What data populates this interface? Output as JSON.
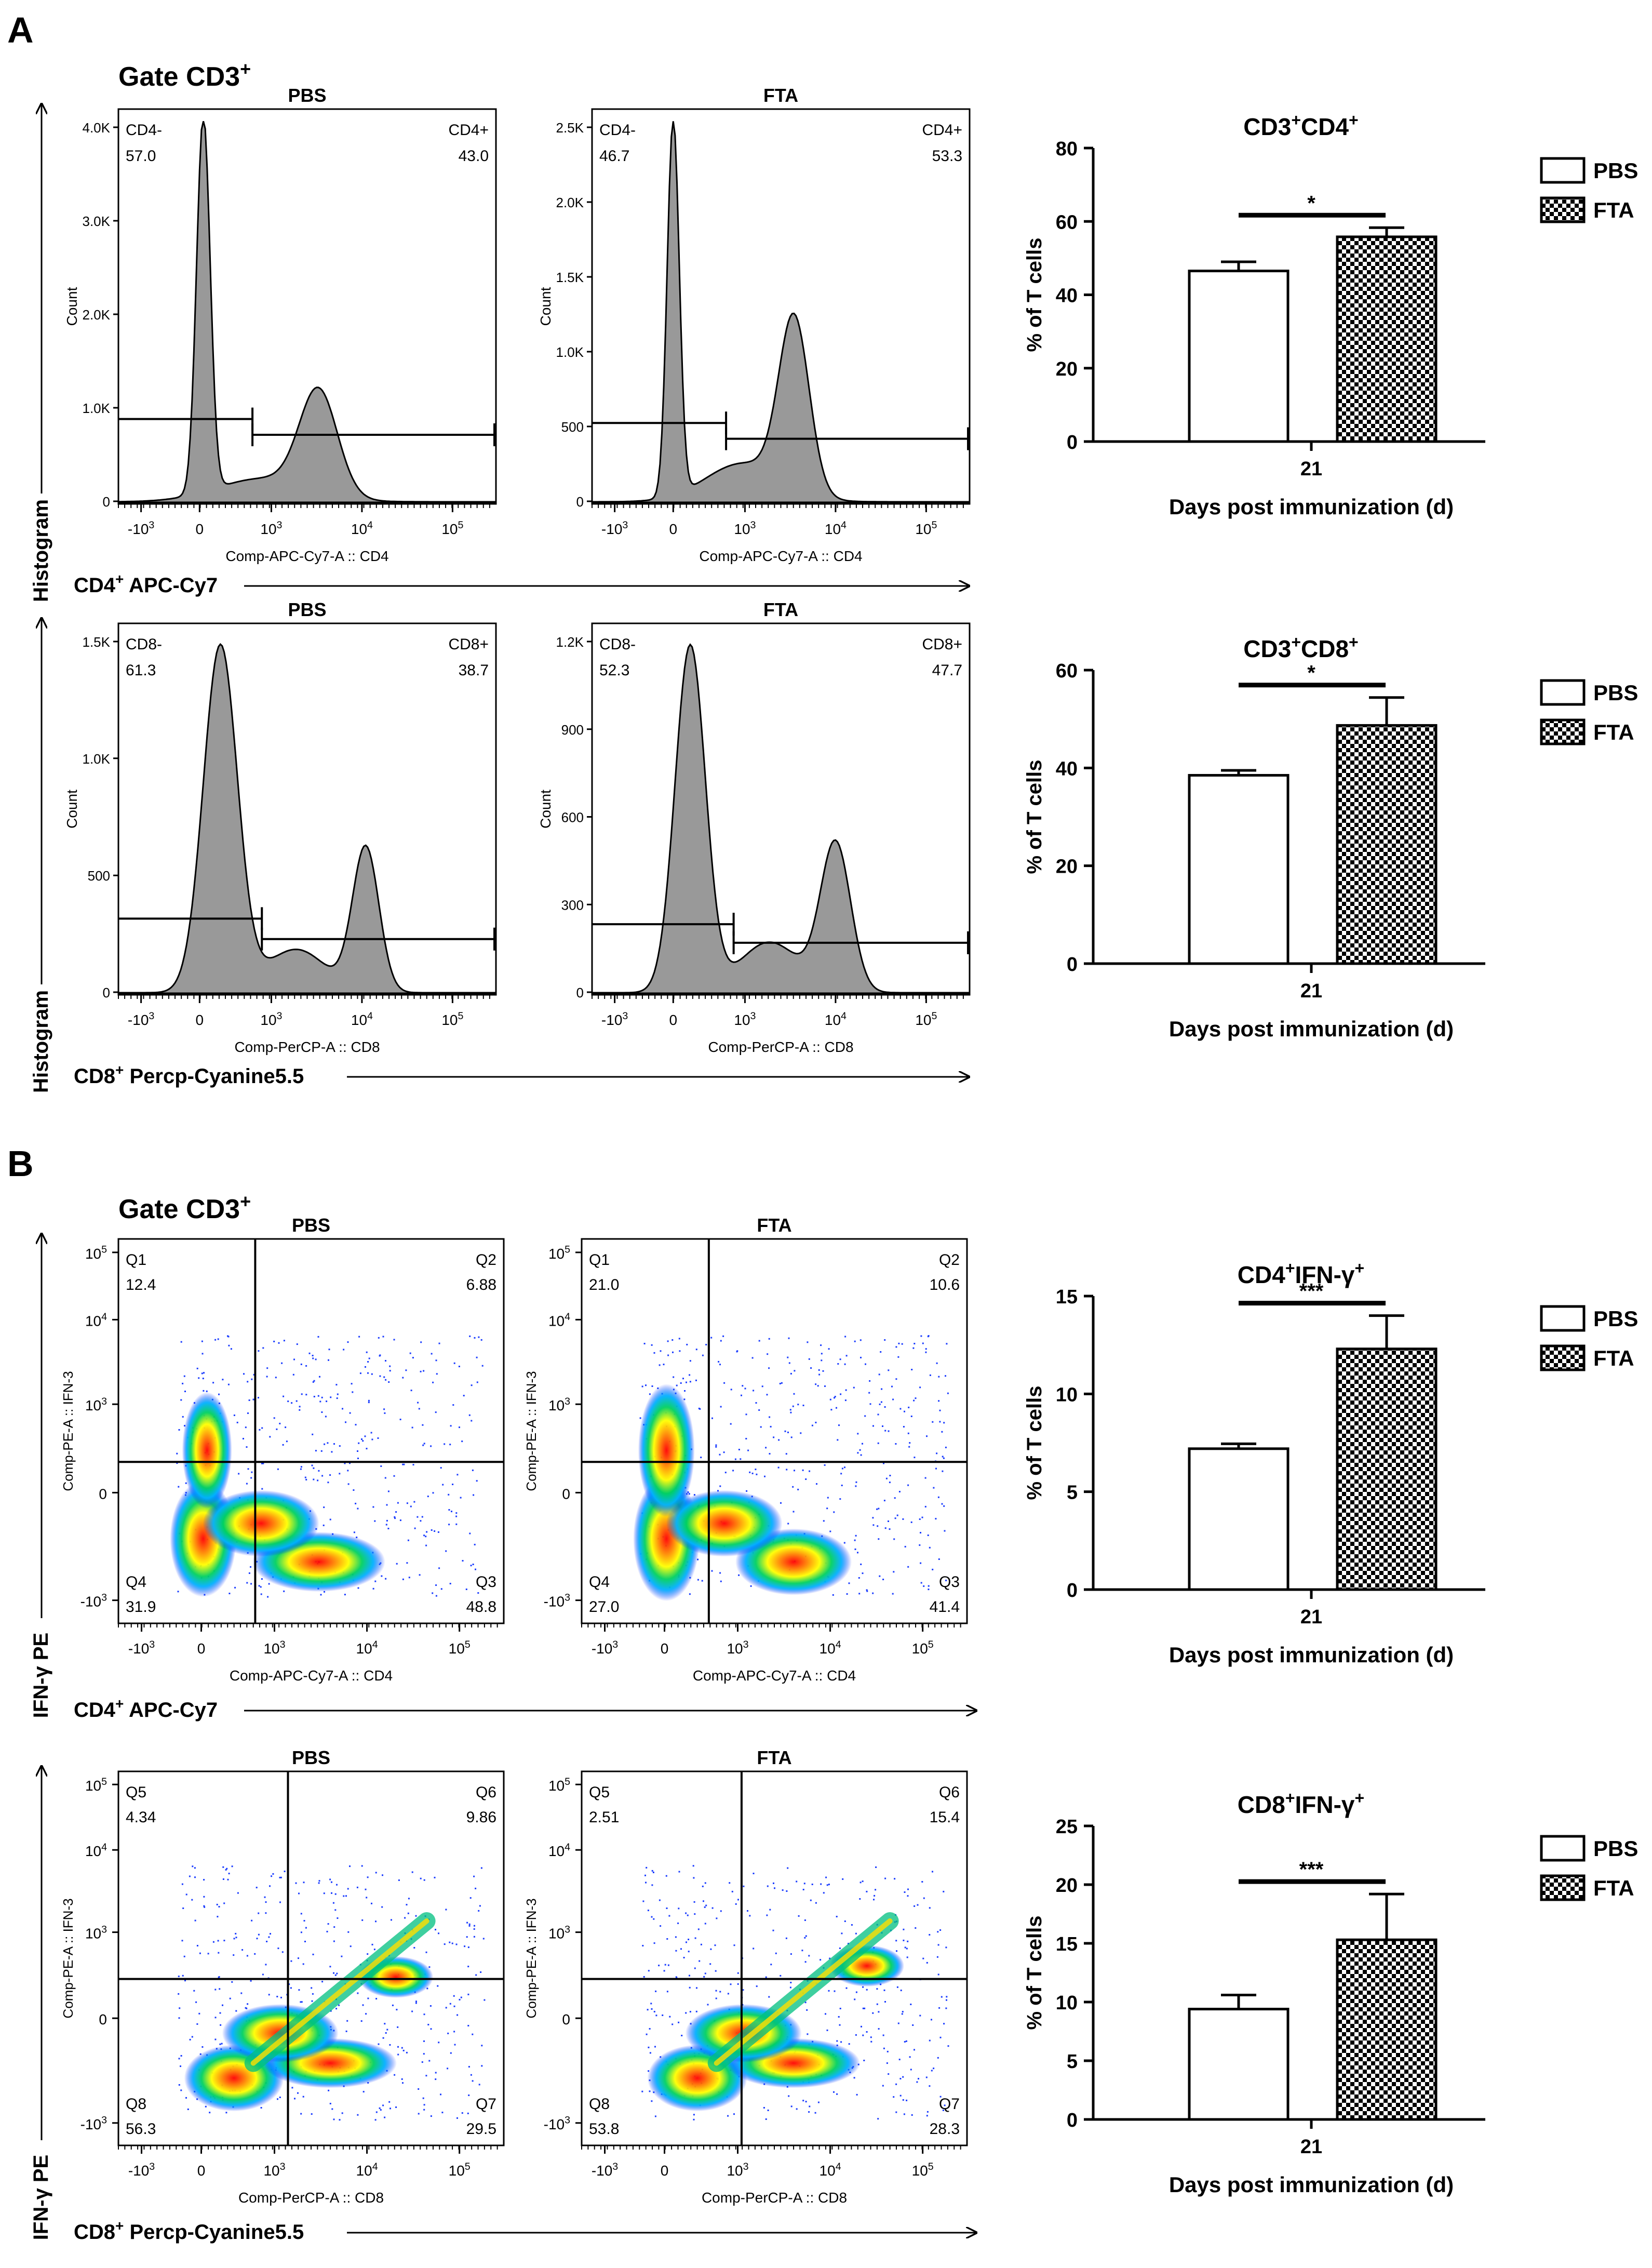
{
  "panel_labels": {
    "A": "A",
    "B": "B"
  },
  "section_A": {
    "gate_label": "Gate CD3",
    "gate_sup": "+",
    "rows": [
      {
        "y_title": "Histogram",
        "x_title_main": "CD4",
        "x_title_sup": "+",
        "x_title_rest": " APC-Cy7",
        "plots": [
          {
            "group": "PBS",
            "xlabel": "Comp-APC-Cy7-A :: CD4",
            "ylabel": "Count",
            "yticks": [
              "0",
              "1.0K",
              "2.0K",
              "3.0K",
              "4.0K"
            ],
            "xticks": [
              "-10",
              "0",
              "10",
              "10",
              "10"
            ],
            "xsup": [
              "3",
              "",
              "3",
              "4",
              "5"
            ],
            "gate_neg_label": "CD4-",
            "gate_neg_value": "57.0",
            "gate_pos_label": "CD4+",
            "gate_pos_value": "43.0"
          },
          {
            "group": "FTA",
            "xlabel": "Comp-APC-Cy7-A :: CD4",
            "ylabel": "Count",
            "yticks": [
              "0",
              "500",
              "1.0K",
              "1.5K",
              "2.0K",
              "2.5K"
            ],
            "xticks": [
              "-10",
              "0",
              "10",
              "10",
              "10"
            ],
            "xsup": [
              "3",
              "",
              "3",
              "4",
              "5"
            ],
            "gate_neg_label": "CD4-",
            "gate_neg_value": "46.7",
            "gate_pos_label": "CD4+",
            "gate_pos_value": "53.3"
          }
        ]
      },
      {
        "y_title": "Histogram",
        "x_title_main": "CD8",
        "x_title_sup": "+",
        "x_title_rest": " Percp-Cyanine5.5",
        "plots": [
          {
            "group": "PBS",
            "xlabel": "Comp-PerCP-A :: CD8",
            "ylabel": "Count",
            "yticks": [
              "0",
              "500",
              "1.0K",
              "1.5K"
            ],
            "xticks": [
              "-10",
              "0",
              "10",
              "10",
              "10"
            ],
            "xsup": [
              "3",
              "",
              "3",
              "4",
              "5"
            ],
            "gate_neg_label": "CD8-",
            "gate_neg_value": "61.3",
            "gate_pos_label": "CD8+",
            "gate_pos_value": "38.7"
          },
          {
            "group": "FTA",
            "xlabel": "Comp-PerCP-A :: CD8",
            "ylabel": "Count",
            "yticks": [
              "0",
              "300",
              "600",
              "900",
              "1.2K"
            ],
            "xticks": [
              "-10",
              "0",
              "10",
              "10",
              "10"
            ],
            "xsup": [
              "3",
              "",
              "3",
              "4",
              "5"
            ],
            "gate_neg_label": "CD8-",
            "gate_neg_value": "52.3",
            "gate_pos_label": "CD8+",
            "gate_pos_value": "47.7"
          }
        ]
      }
    ]
  },
  "section_B": {
    "gate_label": "Gate CD3",
    "gate_sup": "+",
    "rows": [
      {
        "y_title": "IFN-γ PE",
        "x_title_main": "CD4",
        "x_title_sup": "+",
        "x_title_rest": " APC-Cy7",
        "plots": [
          {
            "group": "PBS",
            "xlabel": "Comp-APC-Cy7-A :: CD4",
            "ylabel": "Comp-PE-A :: IFN-3",
            "yticks": [
              "-10",
              "0",
              "10",
              "10",
              "10"
            ],
            "ysup": [
              "3",
              "",
              "3",
              "4",
              "5"
            ],
            "xticks": [
              "-10",
              "0",
              "10",
              "10",
              "10"
            ],
            "xsup": [
              "3",
              "",
              "3",
              "4",
              "5"
            ],
            "quadrants": [
              {
                "name": "Q1",
                "value": "12.4"
              },
              {
                "name": "Q2",
                "value": "6.88"
              },
              {
                "name": "Q3",
                "value": "48.8"
              },
              {
                "name": "Q4",
                "value": "31.9"
              }
            ]
          },
          {
            "group": "FTA",
            "xlabel": "Comp-APC-Cy7-A :: CD4",
            "ylabel": "Comp-PE-A :: IFN-3",
            "yticks": [
              "-10",
              "0",
              "10",
              "10",
              "10"
            ],
            "ysup": [
              "3",
              "",
              "3",
              "4",
              "5"
            ],
            "xticks": [
              "-10",
              "0",
              "10",
              "10",
              "10"
            ],
            "xsup": [
              "3",
              "",
              "3",
              "4",
              "5"
            ],
            "quadrants": [
              {
                "name": "Q1",
                "value": "21.0"
              },
              {
                "name": "Q2",
                "value": "10.6"
              },
              {
                "name": "Q3",
                "value": "41.4"
              },
              {
                "name": "Q4",
                "value": "27.0"
              }
            ]
          }
        ]
      },
      {
        "y_title": "IFN-γ PE",
        "x_title_main": "CD8",
        "x_title_sup": "+",
        "x_title_rest": " Percp-Cyanine5.5",
        "plots": [
          {
            "group": "PBS",
            "xlabel": "Comp-PerCP-A :: CD8",
            "ylabel": "Comp-PE-A :: IFN-3",
            "yticks": [
              "-10",
              "0",
              "10",
              "10",
              "10"
            ],
            "ysup": [
              "3",
              "",
              "3",
              "4",
              "5"
            ],
            "xticks": [
              "-10",
              "0",
              "10",
              "10",
              "10"
            ],
            "xsup": [
              "3",
              "",
              "3",
              "4",
              "5"
            ],
            "quadrants": [
              {
                "name": "Q5",
                "value": "4.34"
              },
              {
                "name": "Q6",
                "value": "9.86"
              },
              {
                "name": "Q7",
                "value": "29.5"
              },
              {
                "name": "Q8",
                "value": "56.3"
              }
            ]
          },
          {
            "group": "FTA",
            "xlabel": "Comp-PerCP-A :: CD8",
            "ylabel": "Comp-PE-A :: IFN-3",
            "yticks": [
              "-10",
              "0",
              "10",
              "10",
              "10"
            ],
            "ysup": [
              "3",
              "",
              "3",
              "4",
              "5"
            ],
            "xticks": [
              "-10",
              "0",
              "10",
              "10",
              "10"
            ],
            "xsup": [
              "3",
              "",
              "3",
              "4",
              "5"
            ],
            "quadrants": [
              {
                "name": "Q5",
                "value": "2.51"
              },
              {
                "name": "Q6",
                "value": "15.4"
              },
              {
                "name": "Q7",
                "value": "28.3"
              },
              {
                "name": "Q8",
                "value": "53.8"
              }
            ]
          }
        ]
      }
    ]
  },
  "legend": {
    "pbs_label": "PBS",
    "fta_label": "FTA"
  },
  "colors": {
    "fta_check": "#000000",
    "histogram_fill": "#999999",
    "axis": "#000000"
  },
  "chart_data": [
    {
      "type": "bar",
      "title": "CD3+CD4+",
      "title_base1": "CD3",
      "title_sup1": "+",
      "title_base2": "CD4",
      "title_sup2": "+",
      "categories": [
        "21"
      ],
      "xlabel": "Days post immunization (d)",
      "ylabel": "% of T cells",
      "ylim": [
        0,
        80
      ],
      "yticks": [
        0,
        20,
        40,
        60,
        80
      ],
      "series": [
        {
          "name": "PBS",
          "values": [
            46.5
          ],
          "errors": [
            2.5
          ]
        },
        {
          "name": "FTA",
          "values": [
            55.8
          ],
          "errors": [
            2.5
          ]
        }
      ],
      "significance": "*"
    },
    {
      "type": "bar",
      "title": "CD3+CD8+",
      "title_base1": "CD3",
      "title_sup1": "+",
      "title_base2": "CD8",
      "title_sup2": "+",
      "categories": [
        "21"
      ],
      "xlabel": "Days post immunization (d)",
      "ylabel": "% of T cells",
      "ylim": [
        0,
        60
      ],
      "yticks": [
        0,
        20,
        40,
        60
      ],
      "series": [
        {
          "name": "PBS",
          "values": [
            38.5
          ],
          "errors": [
            1.0
          ]
        },
        {
          "name": "FTA",
          "values": [
            48.7
          ],
          "errors": [
            5.7
          ]
        }
      ],
      "significance": "*"
    },
    {
      "type": "bar",
      "title": "CD4+IFN-γ+",
      "title_base1": "CD4",
      "title_sup1": "+",
      "title_base2": "IFN-γ",
      "title_sup2": "+",
      "categories": [
        "21"
      ],
      "xlabel": "Days post immunization (d)",
      "ylabel": "% of T cells",
      "ylim": [
        0,
        15
      ],
      "yticks": [
        0,
        5,
        10,
        15
      ],
      "series": [
        {
          "name": "PBS",
          "values": [
            7.2
          ],
          "errors": [
            0.25
          ]
        },
        {
          "name": "FTA",
          "values": [
            12.3
          ],
          "errors": [
            1.7
          ]
        }
      ],
      "significance": "***"
    },
    {
      "type": "bar",
      "title": "CD8+IFN-γ+",
      "title_base1": "CD8",
      "title_sup1": "+",
      "title_base2": "IFN-γ",
      "title_sup2": "+",
      "categories": [
        "21"
      ],
      "xlabel": "Days post immunization (d)",
      "ylabel": "% of T cells",
      "ylim": [
        0,
        25
      ],
      "yticks": [
        0,
        5,
        10,
        15,
        20,
        25
      ],
      "series": [
        {
          "name": "PBS",
          "values": [
            9.4
          ],
          "errors": [
            1.2
          ]
        },
        {
          "name": "FTA",
          "values": [
            15.3
          ],
          "errors": [
            3.9
          ]
        }
      ],
      "significance": "***"
    }
  ]
}
